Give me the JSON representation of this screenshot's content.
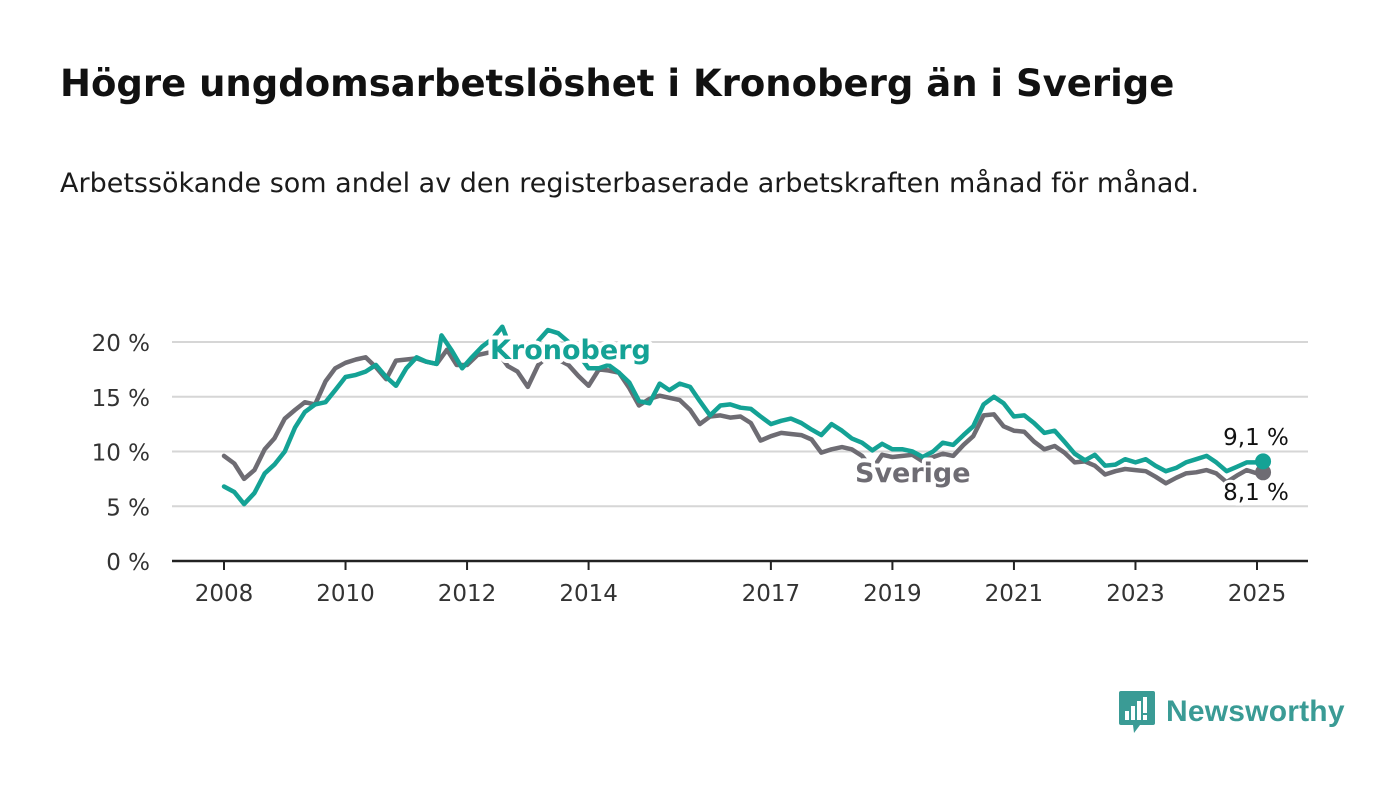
{
  "title": "Högre ungdomsarbetslöshet i Kronoberg än i Sverige",
  "subtitle": "Arbetssökande som andel av den registerbaserade arbetskraften månad för månad.",
  "logo": {
    "text": "Newsworthy",
    "icon": "bar-chart-speech-bubble-icon"
  },
  "colors": {
    "kronoberg": "#14a295",
    "sverige": "#6e6c73",
    "grid": "#d6d6d6",
    "axis": "#222222",
    "brand": "#3a9b95"
  },
  "chart_data": {
    "type": "line",
    "xlabel": "",
    "ylabel": "",
    "xlim": [
      2008,
      2025.1
    ],
    "ylim": [
      0,
      20
    ],
    "x_ticks": [
      2008,
      2010,
      2012,
      2014,
      2017,
      2019,
      2021,
      2023,
      2025
    ],
    "x_tick_labels": [
      "2008",
      "2010",
      "2012",
      "2014",
      "2017",
      "2019",
      "2021",
      "2023",
      "2025"
    ],
    "y_ticks": [
      0,
      5,
      10,
      15,
      20
    ],
    "y_tick_labels": [
      "0 %",
      "5 %",
      "10 %",
      "15 %",
      "20 %"
    ],
    "grid": true,
    "legend": "direct-labels",
    "series": [
      {
        "name": "Kronoberg",
        "end_label": "9,1 %",
        "points": [
          [
            2008.0,
            6.8
          ],
          [
            2008.17,
            6.3
          ],
          [
            2008.33,
            5.2
          ],
          [
            2008.5,
            6.2
          ],
          [
            2008.67,
            8.0
          ],
          [
            2008.83,
            8.8
          ],
          [
            2009.0,
            10.0
          ],
          [
            2009.17,
            12.2
          ],
          [
            2009.33,
            13.6
          ],
          [
            2009.5,
            14.3
          ],
          [
            2009.67,
            14.5
          ],
          [
            2009.83,
            15.6
          ],
          [
            2010.0,
            16.8
          ],
          [
            2010.17,
            17.0
          ],
          [
            2010.33,
            17.3
          ],
          [
            2010.5,
            17.9
          ],
          [
            2010.67,
            16.8
          ],
          [
            2010.83,
            16.0
          ],
          [
            2011.0,
            17.6
          ],
          [
            2011.17,
            18.6
          ],
          [
            2011.33,
            18.2
          ],
          [
            2011.5,
            18.0
          ],
          [
            2011.58,
            20.6
          ],
          [
            2011.75,
            19.2
          ],
          [
            2011.92,
            17.6
          ],
          [
            2012.08,
            18.6
          ],
          [
            2012.25,
            19.6
          ],
          [
            2012.42,
            20.3
          ],
          [
            2012.58,
            21.4
          ],
          [
            2012.67,
            20.1
          ],
          [
            2012.83,
            19.5
          ],
          [
            2013.0,
            18.6
          ],
          [
            2013.17,
            20.1
          ],
          [
            2013.33,
            21.1
          ],
          [
            2013.5,
            20.8
          ],
          [
            2013.67,
            20.0
          ],
          [
            2013.83,
            18.9
          ],
          [
            2014.0,
            17.6
          ],
          [
            2014.17,
            17.6
          ],
          [
            2014.33,
            17.9
          ],
          [
            2014.5,
            17.2
          ],
          [
            2014.67,
            16.3
          ],
          [
            2014.83,
            14.6
          ],
          [
            2015.0,
            14.4
          ],
          [
            2015.17,
            16.2
          ],
          [
            2015.33,
            15.6
          ],
          [
            2015.5,
            16.2
          ],
          [
            2015.67,
            15.9
          ],
          [
            2015.83,
            14.6
          ],
          [
            2016.0,
            13.3
          ],
          [
            2016.17,
            14.2
          ],
          [
            2016.33,
            14.3
          ],
          [
            2016.5,
            14.0
          ],
          [
            2016.67,
            13.9
          ],
          [
            2016.83,
            13.2
          ],
          [
            2017.0,
            12.5
          ],
          [
            2017.17,
            12.8
          ],
          [
            2017.33,
            13.0
          ],
          [
            2017.5,
            12.6
          ],
          [
            2017.67,
            12.0
          ],
          [
            2017.83,
            11.5
          ],
          [
            2018.0,
            12.5
          ],
          [
            2018.17,
            11.9
          ],
          [
            2018.33,
            11.2
          ],
          [
            2018.5,
            10.8
          ],
          [
            2018.67,
            10.1
          ],
          [
            2018.83,
            10.7
          ],
          [
            2019.0,
            10.2
          ],
          [
            2019.17,
            10.2
          ],
          [
            2019.33,
            10.0
          ],
          [
            2019.5,
            9.5
          ],
          [
            2019.67,
            10.0
          ],
          [
            2019.83,
            10.8
          ],
          [
            2020.0,
            10.6
          ],
          [
            2020.17,
            11.5
          ],
          [
            2020.33,
            12.3
          ],
          [
            2020.5,
            14.3
          ],
          [
            2020.67,
            15.0
          ],
          [
            2020.83,
            14.4
          ],
          [
            2021.0,
            13.2
          ],
          [
            2021.17,
            13.3
          ],
          [
            2021.33,
            12.6
          ],
          [
            2021.5,
            11.7
          ],
          [
            2021.67,
            11.9
          ],
          [
            2021.83,
            10.9
          ],
          [
            2022.0,
            9.8
          ],
          [
            2022.17,
            9.2
          ],
          [
            2022.33,
            9.7
          ],
          [
            2022.5,
            8.7
          ],
          [
            2022.67,
            8.8
          ],
          [
            2022.83,
            9.3
          ],
          [
            2023.0,
            9.0
          ],
          [
            2023.17,
            9.3
          ],
          [
            2023.33,
            8.7
          ],
          [
            2023.5,
            8.2
          ],
          [
            2023.67,
            8.5
          ],
          [
            2023.83,
            9.0
          ],
          [
            2024.0,
            9.3
          ],
          [
            2024.17,
            9.6
          ],
          [
            2024.33,
            9.0
          ],
          [
            2024.5,
            8.2
          ],
          [
            2024.67,
            8.6
          ],
          [
            2024.83,
            9.0
          ],
          [
            2025.0,
            9.0
          ],
          [
            2025.1,
            9.1
          ]
        ]
      },
      {
        "name": "Sverige",
        "end_label": "8,1 %",
        "points": [
          [
            2008.0,
            9.6
          ],
          [
            2008.17,
            8.9
          ],
          [
            2008.33,
            7.5
          ],
          [
            2008.5,
            8.3
          ],
          [
            2008.67,
            10.2
          ],
          [
            2008.83,
            11.2
          ],
          [
            2009.0,
            13.0
          ],
          [
            2009.17,
            13.8
          ],
          [
            2009.33,
            14.5
          ],
          [
            2009.5,
            14.3
          ],
          [
            2009.67,
            16.4
          ],
          [
            2009.83,
            17.6
          ],
          [
            2010.0,
            18.1
          ],
          [
            2010.17,
            18.4
          ],
          [
            2010.33,
            18.6
          ],
          [
            2010.5,
            17.7
          ],
          [
            2010.67,
            16.6
          ],
          [
            2010.83,
            18.3
          ],
          [
            2011.0,
            18.4
          ],
          [
            2011.17,
            18.5
          ],
          [
            2011.33,
            18.2
          ],
          [
            2011.5,
            18.0
          ],
          [
            2011.67,
            19.3
          ],
          [
            2011.83,
            17.9
          ],
          [
            2012.0,
            17.9
          ],
          [
            2012.17,
            18.8
          ],
          [
            2012.33,
            19.0
          ],
          [
            2012.5,
            19.1
          ],
          [
            2012.67,
            17.8
          ],
          [
            2012.83,
            17.3
          ],
          [
            2013.0,
            15.9
          ],
          [
            2013.17,
            17.9
          ],
          [
            2013.33,
            18.7
          ],
          [
            2013.5,
            18.4
          ],
          [
            2013.67,
            17.9
          ],
          [
            2013.83,
            16.9
          ],
          [
            2014.0,
            16.0
          ],
          [
            2014.17,
            17.5
          ],
          [
            2014.33,
            17.4
          ],
          [
            2014.5,
            17.2
          ],
          [
            2014.67,
            15.8
          ],
          [
            2014.83,
            14.2
          ],
          [
            2015.0,
            14.8
          ],
          [
            2015.17,
            15.1
          ],
          [
            2015.33,
            14.9
          ],
          [
            2015.5,
            14.7
          ],
          [
            2015.67,
            13.8
          ],
          [
            2015.83,
            12.5
          ],
          [
            2016.0,
            13.2
          ],
          [
            2016.17,
            13.3
          ],
          [
            2016.33,
            13.1
          ],
          [
            2016.5,
            13.2
          ],
          [
            2016.67,
            12.6
          ],
          [
            2016.83,
            11.0
          ],
          [
            2017.0,
            11.4
          ],
          [
            2017.17,
            11.7
          ],
          [
            2017.33,
            11.6
          ],
          [
            2017.5,
            11.5
          ],
          [
            2017.67,
            11.1
          ],
          [
            2017.83,
            9.9
          ],
          [
            2018.0,
            10.2
          ],
          [
            2018.17,
            10.4
          ],
          [
            2018.33,
            10.2
          ],
          [
            2018.5,
            9.6
          ],
          [
            2018.67,
            8.4
          ],
          [
            2018.83,
            9.7
          ],
          [
            2019.0,
            9.5
          ],
          [
            2019.17,
            9.6
          ],
          [
            2019.33,
            9.7
          ],
          [
            2019.5,
            9.1
          ],
          [
            2019.67,
            9.5
          ],
          [
            2019.83,
            9.8
          ],
          [
            2020.0,
            9.6
          ],
          [
            2020.17,
            10.6
          ],
          [
            2020.33,
            11.4
          ],
          [
            2020.5,
            13.3
          ],
          [
            2020.67,
            13.4
          ],
          [
            2020.83,
            12.3
          ],
          [
            2021.0,
            11.9
          ],
          [
            2021.17,
            11.8
          ],
          [
            2021.33,
            10.9
          ],
          [
            2021.5,
            10.2
          ],
          [
            2021.67,
            10.5
          ],
          [
            2021.83,
            9.9
          ],
          [
            2022.0,
            9.0
          ],
          [
            2022.17,
            9.1
          ],
          [
            2022.33,
            8.7
          ],
          [
            2022.5,
            7.9
          ],
          [
            2022.67,
            8.2
          ],
          [
            2022.83,
            8.4
          ],
          [
            2023.0,
            8.3
          ],
          [
            2023.17,
            8.2
          ],
          [
            2023.33,
            7.7
          ],
          [
            2023.5,
            7.1
          ],
          [
            2023.67,
            7.6
          ],
          [
            2023.83,
            8.0
          ],
          [
            2024.0,
            8.1
          ],
          [
            2024.17,
            8.3
          ],
          [
            2024.33,
            8.0
          ],
          [
            2024.5,
            7.2
          ],
          [
            2024.67,
            7.8
          ],
          [
            2024.83,
            8.3
          ],
          [
            2025.0,
            8.0
          ],
          [
            2025.1,
            8.1
          ]
        ]
      }
    ]
  }
}
